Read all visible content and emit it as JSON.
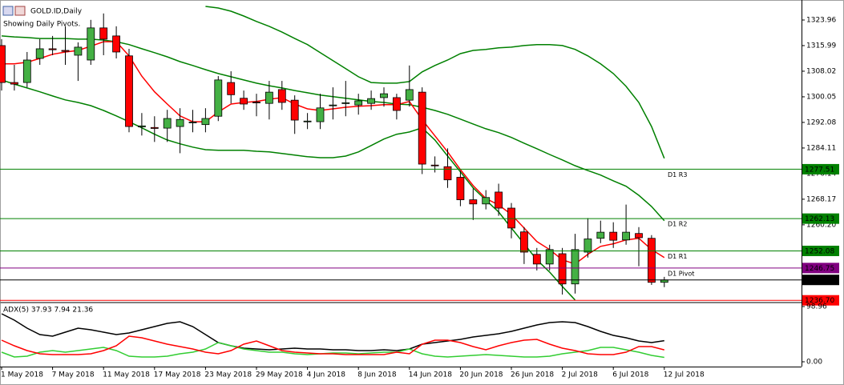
{
  "chart_data": [
    {
      "type": "candlestick",
      "title": "GOLD.ID,Daily",
      "subtitle": "Showing Daily Pivots.",
      "x": [
        "1 May 2018",
        null,
        null,
        null,
        "7 May 2018",
        null,
        null,
        null,
        "11 May 2018",
        null,
        null,
        null,
        "17 May 2018",
        null,
        null,
        null,
        "23 May 2018",
        null,
        null,
        null,
        "29 May 2018",
        null,
        null,
        null,
        "4 Jun 2018",
        null,
        null,
        null,
        "8 Jun 2018",
        null,
        null,
        null,
        "14 Jun 2018",
        null,
        null,
        null,
        "20 Jun 2018",
        null,
        null,
        null,
        "26 Jun 2018",
        null,
        null,
        null,
        "2 Jul 2018",
        null,
        null,
        null,
        "6 Jul 2018",
        null,
        null,
        null,
        "12 Jul 2018"
      ],
      "open": [
        1316,
        1304.5,
        1304.5,
        1312,
        1315,
        1314.5,
        1313,
        1311.5,
        1321.5,
        1319,
        1312.8,
        1290.7,
        1290.5,
        1290.3,
        1290.8,
        1292,
        1291.4,
        1294,
        1304.5,
        1299.6,
        1298.4,
        1298,
        1302.3,
        1299,
        1292.3,
        1292.3,
        1297.3,
        1298,
        1297.5,
        1298,
        1299.8,
        1299.8,
        1299,
        1301.5,
        1278.8,
        1278.3,
        1275,
        1268,
        1266.7,
        1270.4,
        1265.4,
        1258,
        1251,
        1248,
        1251.2,
        1241.8,
        1251.7,
        1256,
        1257.9,
        1255.5,
        1257.5,
        1256,
        1242.3
      ],
      "high": [
        1318,
        1310,
        1314,
        1318,
        1319,
        1322,
        1317,
        1324,
        1326,
        1322,
        1315,
        1295,
        1294,
        1296,
        1296.5,
        1296,
        1296.5,
        1306.5,
        1308,
        1302,
        1301,
        1305,
        1305,
        1300.5,
        1295,
        1301,
        1303,
        1305,
        1301,
        1302,
        1303,
        1301,
        1309.8,
        1303,
        1281.5,
        1284,
        1277,
        1271.5,
        1271,
        1273,
        1267,
        1259.5,
        1253,
        1254,
        1253,
        1257.4,
        1262.3,
        1261.5,
        1261,
        1266.5,
        1259.5,
        1257,
        1244
      ],
      "low": [
        1302,
        1302,
        1303,
        1310,
        1313,
        1310,
        1305,
        1310,
        1313,
        1312,
        1289,
        1288,
        1286,
        1286,
        1282.5,
        1289,
        1289,
        1292.5,
        1298,
        1296,
        1294,
        1293,
        1296,
        1288.5,
        1290,
        1290,
        1293,
        1294,
        1294.5,
        1296,
        1297,
        1293,
        1297,
        1276,
        1276.5,
        1271.7,
        1266,
        1261.7,
        1265,
        1263,
        1256,
        1248,
        1246,
        1246,
        1238.5,
        1238.8,
        1250,
        1254.5,
        1253,
        1254,
        1247.3,
        1241.5,
        1240.8
      ],
      "close": [
        1304.5,
        1304,
        1311.5,
        1315,
        1314.7,
        1314.2,
        1315.5,
        1321.5,
        1318,
        1314,
        1290.8,
        1291,
        1290.2,
        1293.3,
        1293,
        1292.2,
        1293.3,
        1305.3,
        1300.7,
        1297.8,
        1298.2,
        1301.5,
        1298.3,
        1292.8,
        1292.5,
        1296.6,
        1297.5,
        1298.2,
        1298.8,
        1299.5,
        1301,
        1295.8,
        1302.3,
        1279.1,
        1278.6,
        1274.2,
        1268,
        1266.7,
        1268.7,
        1265.4,
        1259.2,
        1251.7,
        1248,
        1252.5,
        1241.8,
        1252.5,
        1255.8,
        1257.9,
        1255.4,
        1257.9,
        1256.2,
        1242.3,
        1243.05
      ],
      "up_color": "#44b044",
      "down_color": "#ff0000",
      "series": [
        {
          "color": "#008000",
          "values": [
            null,
            null,
            null,
            null,
            null,
            null,
            null,
            null,
            null,
            null,
            null,
            null,
            null,
            null,
            null,
            null,
            1328.2,
            1327.7,
            1326.7,
            1325.2,
            1323.5,
            1322.0,
            1320.2,
            1318.2,
            1316.3,
            1313.8,
            1311.3,
            1308.8,
            1306.3,
            1304.5,
            1304.3,
            1304.3,
            1304.8,
            1307.8,
            1309.8,
            1311.5,
            1313.5,
            1314.5,
            1314.8,
            1315.3,
            1315.5,
            1316.0,
            1316.3,
            1316.3,
            1316.0,
            1314.8,
            1312.8,
            1310.3,
            1307.3,
            1303.3,
            1298.3,
            1290.8,
            1280.9
          ]
        },
        {
          "color": "#008000",
          "values": [
            1319.0,
            1318.7,
            1318.5,
            1318.2,
            1318.2,
            1318.2,
            1318.0,
            1318.0,
            1317.7,
            1317.2,
            1316.3,
            1315.0,
            1313.8,
            1312.5,
            1311.0,
            1309.8,
            1308.5,
            1307.3,
            1306.3,
            1305.3,
            1304.3,
            1303.5,
            1302.8,
            1302.0,
            1301.3,
            1300.6,
            1300.1,
            1299.6,
            1299.1,
            1298.6,
            1298.3,
            1297.8,
            1297.6,
            1296.8,
            1295.8,
            1294.6,
            1293.1,
            1291.6,
            1290.1,
            1288.9,
            1287.4,
            1285.6,
            1283.9,
            1282.1,
            1280.4,
            1278.6,
            1277.1,
            1275.7,
            1273.9,
            1272.2,
            1269.4,
            1265.9,
            1261.5
          ]
        },
        {
          "color": "#008000",
          "values": [
            1305.3,
            1304.0,
            1302.8,
            1301.6,
            1300.3,
            1299.1,
            1298.3,
            1297.3,
            1295.8,
            1294.1,
            1292.3,
            1290.4,
            1288.4,
            1286.6,
            1285.4,
            1284.4,
            1283.6,
            1283.4,
            1283.4,
            1283.4,
            1283.1,
            1282.9,
            1282.4,
            1281.9,
            1281.4,
            1281.1,
            1281.1,
            1281.6,
            1282.9,
            1284.9,
            1286.9,
            1288.4,
            1289.1,
            1290.4,
            1286.6,
            1281.6,
            1276.7,
            1271.7,
            1267.9,
            1264.2,
            1259.2,
            1254.3,
            1249.3,
            1245.5,
            1241.0,
            1236.8,
            null,
            null,
            null,
            null,
            null,
            null,
            null
          ]
        },
        {
          "color": "#ff0000",
          "values": [
            1310.3,
            1310.3,
            1310.8,
            1312.0,
            1313.3,
            1314.0,
            1314.5,
            1315.8,
            1317.2,
            1317.2,
            1312.8,
            1306.5,
            1301.6,
            1297.8,
            1294.1,
            1292.3,
            1292.3,
            1295.3,
            1297.8,
            1298.3,
            1298.6,
            1299.3,
            1299.8,
            1297.8,
            1296.3,
            1295.8,
            1296.3,
            1296.8,
            1297.1,
            1297.3,
            1297.6,
            1297.6,
            1298.6,
            1292.9,
            1287.9,
            1282.9,
            1277.4,
            1272.4,
            1268.4,
            1266.4,
            1263.4,
            1259.2,
            1255.0,
            1252.5,
            1249.3,
            1248.0,
            1251.0,
            1253.5,
            1254.3,
            1255.5,
            1256.0,
            1252.5,
            1250.0
          ]
        }
      ],
      "levels": {
        "labels": [
          "D1 R3",
          "D1 R2",
          "D1 R1",
          "D1 Pivot",
          null,
          null
        ],
        "values": [
          1277.51,
          1262.13,
          1252.08,
          1246.75,
          1243.05,
          1236.7
        ],
        "value_labels": [
          "1277.51",
          "1262.13",
          "1252.08",
          "1246.75",
          "1243.05",
          "1236.70"
        ],
        "colors": [
          "#008000",
          "#008000",
          "#008000",
          "#800080",
          "#000000",
          "#ff0000"
        ]
      },
      "ylim": [
        1236.5,
        1328.94
      ],
      "yticks": [
        1323.96,
        1315.99,
        1308.02,
        1300.05,
        1292.08,
        1284.11,
        1276.14,
        1268.17,
        {
          "value": 1260.2,
          "label": "1260.20"
        }
      ]
    },
    {
      "type": "line",
      "title": "ADX(5) 37.93 7.94 21.36",
      "series": [
        {
          "color": "#000000",
          "values": [
            86.0,
            74.6,
            60.2,
            48.8,
            45.9,
            53.1,
            60.2,
            57.4,
            53.1,
            48.8,
            51.6,
            57.4,
            63.1,
            68.8,
            71.7,
            63.1,
            48.8,
            34.4,
            28.7,
            24.4,
            22.9,
            21.5,
            22.9,
            24.4,
            22.9,
            22.9,
            21.5,
            21.5,
            20.1,
            20.1,
            21.5,
            20.1,
            22.9,
            31.5,
            34.4,
            37.3,
            40.2,
            44.5,
            47.3,
            50.2,
            54.5,
            60.2,
            66.0,
            70.3,
            71.7,
            70.3,
            63.1,
            54.5,
            47.3,
            43.0,
            37.3,
            34.4,
            37.93
          ]
        },
        {
          "color": "#32cd32",
          "values": [
            17.2,
            8.6,
            10.0,
            17.2,
            20.1,
            17.2,
            20.1,
            22.9,
            25.8,
            20.1,
            10.0,
            8.6,
            8.6,
            10.0,
            14.3,
            17.2,
            22.9,
            34.4,
            28.7,
            22.9,
            20.1,
            17.2,
            17.2,
            14.3,
            12.9,
            14.3,
            15.8,
            15.8,
            14.3,
            15.8,
            17.2,
            17.2,
            22.9,
            14.3,
            10.0,
            8.6,
            10.0,
            11.5,
            12.9,
            11.5,
            10.0,
            8.6,
            8.6,
            10.0,
            14.3,
            17.2,
            20.1,
            25.8,
            25.8,
            21.5,
            17.2,
            11.5,
            7.94
          ]
        },
        {
          "color": "#ff0000",
          "values": [
            38.7,
            28.7,
            20.1,
            14.3,
            12.9,
            12.9,
            12.9,
            14.3,
            20.1,
            28.7,
            45.9,
            43.0,
            37.3,
            31.5,
            27.2,
            22.9,
            17.2,
            14.3,
            20.1,
            31.5,
            37.3,
            28.7,
            20.1,
            17.2,
            15.8,
            14.3,
            14.3,
            12.9,
            12.9,
            12.9,
            12.9,
            17.2,
            14.3,
            31.5,
            38.7,
            38.7,
            34.4,
            27.2,
            21.5,
            28.7,
            34.4,
            38.7,
            40.2,
            31.5,
            24.4,
            20.1,
            14.3,
            12.9,
            12.9,
            17.2,
            27.2,
            27.2,
            21.36
          ]
        }
      ],
      "ylim": [
        0,
        98.96
      ],
      "yticks": [
        98.96,
        {
          "value": 0,
          "label": "0.00"
        }
      ]
    }
  ]
}
